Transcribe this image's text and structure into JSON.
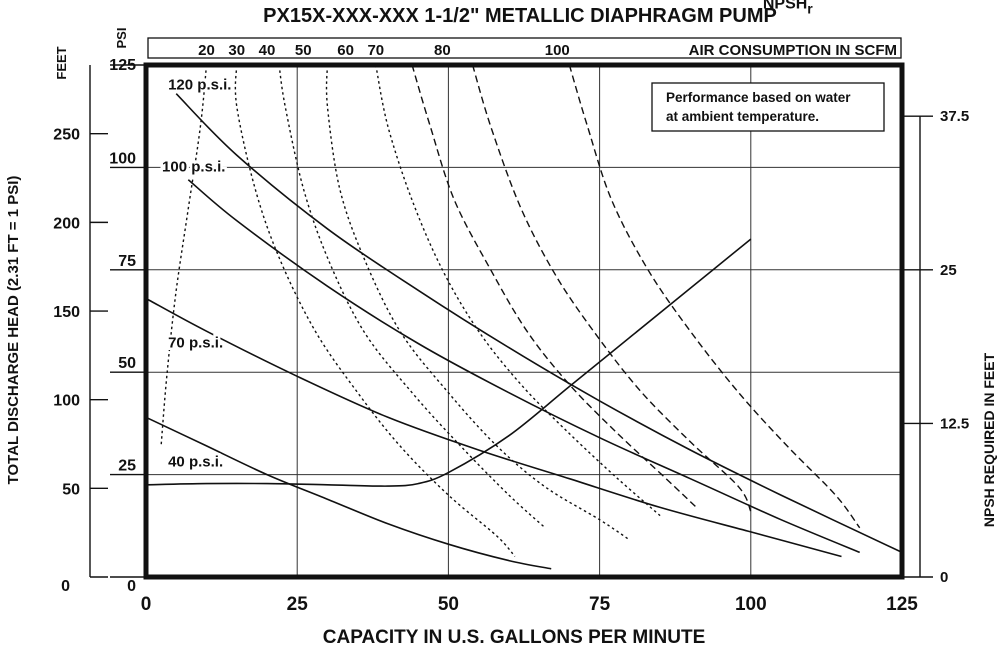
{
  "chart_data": {
    "type": "line",
    "title": "PX15X-XXX-XXX 1-1/2\" METALLIC DIAPHRAGM PUMP",
    "xlabel": "CAPACITY IN U.S. GALLONS PER MINUTE",
    "ylabel_left": "TOTAL DISCHARGE HEAD (2.31 FT = 1 PSI)",
    "ylabel_left_feet": "FEET",
    "ylabel_left_psi": "PSI",
    "ylabel_right": "NPSH REQUIRED IN FEET",
    "air_axis_label": "AIR CONSUMPTION IN SCFM",
    "note_lines": [
      "Performance based on water",
      "at ambient temperature."
    ],
    "xlim": [
      0,
      125
    ],
    "ylim_psi": [
      0,
      125
    ],
    "grid": true,
    "x_ticks": [
      0,
      25,
      50,
      75,
      100,
      125
    ],
    "x_tick_labels": [
      "0",
      "25",
      "50",
      "75",
      "100",
      "125"
    ],
    "psi_ticks": [
      0,
      25,
      50,
      75,
      100,
      125
    ],
    "psi_tick_labels": [
      "0",
      "25",
      "50",
      "75",
      "100",
      "125"
    ],
    "feet_ticks": [
      50,
      100,
      150,
      200,
      250
    ],
    "feet_tick_labels": [
      "50",
      "100",
      "150",
      "200",
      "250"
    ],
    "feet_zero_label": "0",
    "npsh_ticks": [
      0,
      12.5,
      25,
      37.5
    ],
    "npsh_tick_labels": [
      "0",
      "12.5",
      "25",
      "37.5"
    ],
    "series": [
      {
        "name": "120 p.s.i.",
        "label_at": [
          2,
          119
        ],
        "x": [
          5,
          15,
          30,
          45,
          60,
          75,
          90,
          105,
          125
        ],
        "y": [
          118,
          103,
          85,
          70,
          56,
          43,
          31,
          20,
          6
        ]
      },
      {
        "name": "100 p.s.i.",
        "label_at": [
          1,
          99
        ],
        "x": [
          7,
          15,
          30,
          45,
          60,
          75,
          90,
          105,
          118
        ],
        "y": [
          97,
          87,
          71,
          57,
          45,
          34,
          24,
          14,
          6
        ]
      },
      {
        "name": "70 p.s.i.",
        "label_at": [
          2,
          56
        ],
        "x": [
          0,
          10,
          25,
          40,
          55,
          70,
          85,
          100,
          115
        ],
        "y": [
          68,
          60,
          49,
          39,
          31,
          24,
          17,
          11,
          5
        ]
      },
      {
        "name": "40 p.s.i.",
        "label_at": [
          2,
          27
        ],
        "x": [
          0,
          10,
          20,
          30,
          40,
          50,
          60,
          67
        ],
        "y": [
          39,
          32,
          25,
          19,
          13,
          8,
          4,
          2
        ]
      }
    ],
    "npsh": {
      "name": "NPSH",
      "subscript": "r",
      "label_at": [
        101,
        44
      ],
      "x": [
        0,
        10,
        20,
        30,
        40,
        45,
        50,
        60,
        70,
        80,
        90,
        100
      ],
      "y": [
        7.5,
        7.6,
        7.6,
        7.5,
        7.4,
        7.6,
        8.5,
        11.5,
        15.5,
        19.5,
        23.5,
        27.5
      ]
    },
    "air_consumption": [
      {
        "label": "20",
        "x": [
          10,
          9,
          7,
          5,
          3.5,
          2.5
        ],
        "y": [
          125,
          110,
          90,
          70,
          50,
          32
        ],
        "style": "dotted"
      },
      {
        "label": "30",
        "x": [
          15,
          15,
          18,
          22,
          28,
          35,
          42,
          50,
          58,
          61
        ],
        "y": [
          125,
          115,
          95,
          78,
          60,
          45,
          32,
          20,
          10,
          5
        ],
        "style": "dotted"
      },
      {
        "label": "40",
        "x": [
          22,
          23,
          26,
          30,
          36,
          44,
          52,
          60,
          66
        ],
        "y": [
          125,
          115,
          95,
          78,
          60,
          45,
          32,
          20,
          12
        ],
        "style": "dotted"
      },
      {
        "label": "50",
        "x": [
          30,
          30,
          32,
          36,
          42,
          50,
          58,
          66,
          75,
          80
        ],
        "y": [
          125,
          115,
          95,
          78,
          60,
          45,
          32,
          22,
          14,
          9
        ],
        "style": "dotted"
      },
      {
        "label": "60",
        "x": [
          38,
          40,
          44,
          49,
          55,
          62,
          70,
          78,
          85
        ],
        "y": [
          125,
          110,
          92,
          75,
          60,
          47,
          35,
          24,
          15
        ],
        "style": "dotted"
      },
      {
        "label": "70",
        "x": [
          44,
          47,
          51,
          57,
          63,
          70,
          78,
          86,
          91
        ],
        "y": [
          125,
          110,
          92,
          75,
          60,
          47,
          35,
          24,
          17
        ],
        "style": "dashed"
      },
      {
        "label": "80",
        "x": [
          54,
          57,
          62,
          68,
          75,
          82,
          90,
          98,
          100
        ],
        "y": [
          125,
          110,
          90,
          73,
          58,
          45,
          33,
          22,
          16
        ],
        "style": "dashed"
      },
      {
        "label": "100",
        "x": [
          70,
          73,
          77,
          83,
          90,
          98,
          106,
          114,
          118
        ],
        "y": [
          125,
          110,
          92,
          75,
          60,
          45,
          32,
          20,
          12
        ],
        "style": "dashed"
      }
    ],
    "air_axis_ticks": [
      {
        "label": "20",
        "x": 10
      },
      {
        "label": "30",
        "x": 15
      },
      {
        "label": "40",
        "x": 20
      },
      {
        "label": "50",
        "x": 26
      },
      {
        "label": "60",
        "x": 33
      },
      {
        "label": "70",
        "x": 38
      },
      {
        "label": "80",
        "x": 49
      },
      {
        "label": "100",
        "x": 68
      }
    ]
  }
}
